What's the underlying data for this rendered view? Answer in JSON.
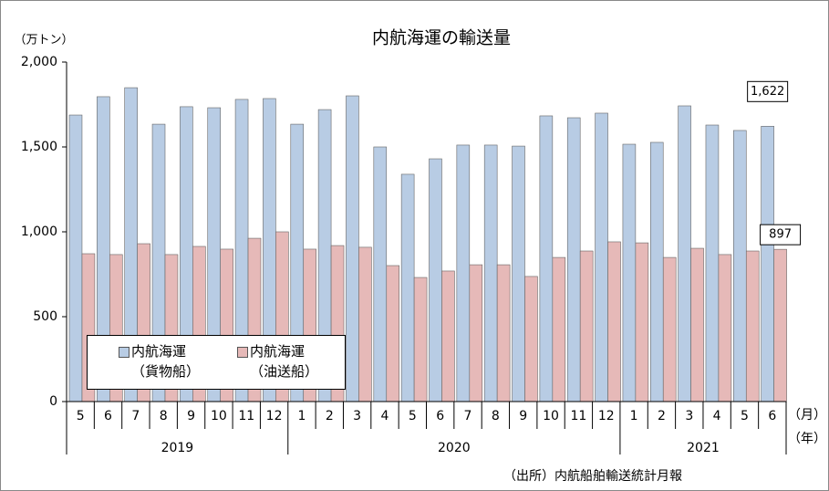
{
  "chart_data": {
    "type": "bar",
    "title": "内航海運の輸送量",
    "y_unit": "（万トン）",
    "x_unit_month": "（月）",
    "x_unit_year": "（年）",
    "source": "（出所）内航船舶輸送統計月報",
    "categories": [
      "5",
      "6",
      "7",
      "8",
      "9",
      "10",
      "11",
      "12",
      "1",
      "2",
      "3",
      "4",
      "5",
      "6",
      "7",
      "8",
      "9",
      "10",
      "11",
      "12",
      "1",
      "2",
      "3",
      "4",
      "5",
      "6"
    ],
    "years": [
      "2019",
      null,
      null,
      null,
      null,
      null,
      null,
      null,
      "2020",
      null,
      null,
      null,
      null,
      null,
      null,
      null,
      null,
      null,
      null,
      null,
      "2021",
      null,
      null,
      null,
      null,
      null
    ],
    "series": [
      {
        "name": "内航海運\n（貨物船）",
        "color": "#b8cce4",
        "values": [
          1688,
          1796,
          1849,
          1634,
          1737,
          1731,
          1780,
          1785,
          1634,
          1720,
          1801,
          1500,
          1339,
          1430,
          1511,
          1511,
          1505,
          1683,
          1672,
          1699,
          1516,
          1527,
          1742,
          1629,
          1597,
          1622
        ],
        "value_labels": [
          null,
          null,
          null,
          null,
          null,
          null,
          null,
          null,
          null,
          null,
          null,
          null,
          null,
          null,
          null,
          null,
          null,
          null,
          null,
          null,
          null,
          null,
          null,
          null,
          null,
          "1,622"
        ]
      },
      {
        "name": "内航海運\n（油送船）",
        "color": "#e6b9b8",
        "values": [
          871,
          866,
          930,
          866,
          914,
          898,
          962,
          1000,
          898,
          919,
          909,
          801,
          731,
          769,
          806,
          806,
          737,
          849,
          887,
          941,
          935,
          849,
          903,
          866,
          887,
          897
        ],
        "value_labels": [
          null,
          null,
          null,
          null,
          null,
          null,
          null,
          null,
          null,
          null,
          null,
          null,
          null,
          null,
          null,
          null,
          null,
          null,
          null,
          null,
          null,
          null,
          null,
          null,
          null,
          "897"
        ]
      }
    ],
    "ylim": [
      0,
      2000
    ],
    "yticks": [
      0,
      500,
      {
        "value": 1000,
        "label": "1,000"
      },
      {
        "value": 1500,
        "label": "1,500"
      },
      {
        "value": 2000,
        "label": "2,000"
      }
    ],
    "grid": false
  }
}
